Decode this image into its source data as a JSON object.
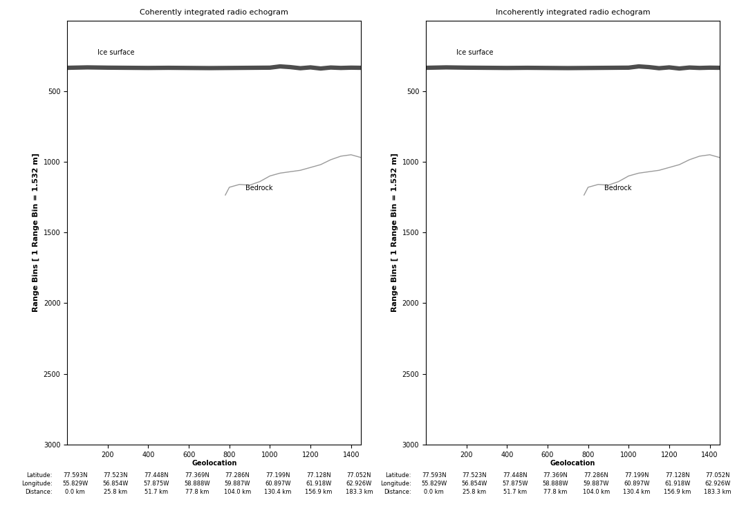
{
  "chart_data": [
    {
      "type": "line",
      "title": "Coherently integrated radio echogram",
      "x_label": "Geolocation",
      "y_label": "Range Bins [ 1 Range Bin = 1.532 m]",
      "xlim": [
        0,
        1450
      ],
      "xticks": [
        200,
        400,
        600,
        800,
        1000,
        1200,
        1400
      ],
      "ylim": [
        3000,
        0
      ],
      "yticks": [
        500,
        1000,
        1500,
        2000,
        2500,
        3000
      ],
      "series": [
        {
          "name": "Ice surface",
          "color": "#4d4d4d",
          "line_style": "solid",
          "x": [
            0,
            100,
            200,
            300,
            400,
            500,
            600,
            700,
            800,
            900,
            1000,
            1050,
            1100,
            1150,
            1200,
            1250,
            1300,
            1350,
            1400,
            1450
          ],
          "values": [
            335,
            332,
            334,
            335,
            336,
            335,
            336,
            337,
            336,
            335,
            334,
            325,
            330,
            338,
            332,
            340,
            333,
            336,
            334,
            335
          ]
        },
        {
          "name": "Bedrock",
          "color": "#9a9a9a",
          "line_style": "solid",
          "x": [
            780,
            800,
            850,
            900,
            950,
            1000,
            1050,
            1100,
            1150,
            1200,
            1250,
            1300,
            1350,
            1400,
            1450
          ],
          "values": [
            1235,
            1180,
            1160,
            1165,
            1140,
            1100,
            1080,
            1070,
            1060,
            1040,
            1020,
            985,
            960,
            950,
            970
          ]
        }
      ],
      "annotations": [
        {
          "text": "Ice surface",
          "x": 150,
          "y": 250
        },
        {
          "text": "Bedrock",
          "x": 880,
          "y": 1210
        }
      ],
      "geolocation": {
        "labels": [
          "Latitude:",
          "Longitude:",
          "Distance:"
        ],
        "x": [
          40,
          240,
          440,
          640,
          840,
          1040,
          1240,
          1440
        ],
        "rows": [
          [
            "77.593N",
            "77.523N",
            "77.448N",
            "77.369N",
            "77.286N",
            "77.199N",
            "77.128N",
            "77.052N"
          ],
          [
            "55.829W",
            "56.854W",
            "57.875W",
            "58.888W",
            "59.887W",
            "60.897W",
            "61.918W",
            "62.926W"
          ],
          [
            "0.0 km",
            "25.8 km",
            "51.7 km",
            "77.8 km",
            "104.0 km",
            "130.4 km",
            "156.9 km",
            "183.3 km"
          ]
        ]
      }
    },
    {
      "type": "line",
      "title": "Incoherently integrated radio echogram",
      "x_label": "Geolocation",
      "y_label": "Range Bins [ 1 Range Bin = 1.532 m]",
      "xlim": [
        0,
        1450
      ],
      "xticks": [
        200,
        400,
        600,
        800,
        1000,
        1200,
        1400
      ],
      "ylim": [
        3000,
        0
      ],
      "yticks": [
        500,
        1000,
        1500,
        2000,
        2500,
        3000
      ],
      "series": [
        {
          "name": "Ice surface",
          "color": "#4d4d4d",
          "line_style": "solid",
          "x": [
            0,
            100,
            200,
            300,
            400,
            500,
            600,
            700,
            800,
            900,
            1000,
            1050,
            1100,
            1150,
            1200,
            1250,
            1300,
            1350,
            1400,
            1450
          ],
          "values": [
            335,
            332,
            334,
            335,
            336,
            335,
            336,
            337,
            336,
            335,
            334,
            325,
            330,
            338,
            332,
            340,
            333,
            336,
            334,
            335
          ]
        },
        {
          "name": "Bedrock",
          "color": "#9a9a9a",
          "line_style": "solid",
          "x": [
            780,
            800,
            850,
            900,
            950,
            1000,
            1050,
            1100,
            1150,
            1200,
            1250,
            1300,
            1350,
            1400,
            1450
          ],
          "values": [
            1235,
            1180,
            1160,
            1165,
            1140,
            1100,
            1080,
            1070,
            1060,
            1040,
            1020,
            985,
            960,
            950,
            970
          ]
        }
      ],
      "annotations": [
        {
          "text": "Ice surface",
          "x": 150,
          "y": 250
        },
        {
          "text": "Bedrock",
          "x": 880,
          "y": 1210
        }
      ],
      "geolocation": {
        "labels": [
          "Latitude:",
          "Longitude:",
          "Distance:"
        ],
        "x": [
          40,
          240,
          440,
          640,
          840,
          1040,
          1240,
          1440
        ],
        "rows": [
          [
            "77.593N",
            "77.523N",
            "77.448N",
            "77.369N",
            "77.286N",
            "77.199N",
            "77.128N",
            "77.052N"
          ],
          [
            "55.829W",
            "56.854W",
            "57.875W",
            "58.888W",
            "59.887W",
            "60.897W",
            "61.918W",
            "62.926W"
          ],
          [
            "0.0 km",
            "25.8 km",
            "51.7 km",
            "77.8 km",
            "104.0 km",
            "130.4 km",
            "156.9 km",
            "183.3 km"
          ]
        ]
      }
    }
  ]
}
